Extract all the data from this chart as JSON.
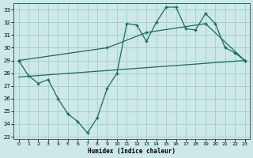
{
  "xlabel": "Humidex (Indice chaleur)",
  "bg_color": "#cce8e8",
  "grid_color": "#aacfcf",
  "line_color": "#1a6b5a",
  "xlim": [
    -0.5,
    23.5
  ],
  "ylim": [
    22.8,
    33.5
  ],
  "xticks": [
    0,
    1,
    2,
    3,
    4,
    5,
    6,
    7,
    8,
    9,
    10,
    11,
    12,
    13,
    14,
    15,
    16,
    17,
    18,
    19,
    20,
    21,
    22,
    23
  ],
  "yticks": [
    23,
    24,
    25,
    26,
    27,
    28,
    29,
    30,
    31,
    32,
    33
  ],
  "line1_x": [
    0,
    1,
    2,
    3,
    4,
    5,
    6,
    7,
    8,
    9,
    10,
    11,
    12,
    13,
    14,
    15,
    16,
    17,
    18,
    19,
    20,
    21,
    22,
    23
  ],
  "line1_y": [
    29.0,
    27.8,
    27.2,
    27.5,
    26.0,
    24.8,
    24.2,
    23.3,
    24.5,
    26.8,
    28.0,
    31.9,
    31.8,
    30.5,
    32.0,
    33.2,
    33.2,
    31.5,
    31.4,
    32.7,
    31.9,
    30.0,
    29.6,
    29.0
  ],
  "line2_x": [
    0,
    9,
    13,
    19,
    23
  ],
  "line2_y": [
    29.0,
    30.0,
    31.2,
    31.9,
    29.0
  ],
  "line3_x": [
    0,
    23
  ],
  "line3_y": [
    27.7,
    29.0
  ]
}
